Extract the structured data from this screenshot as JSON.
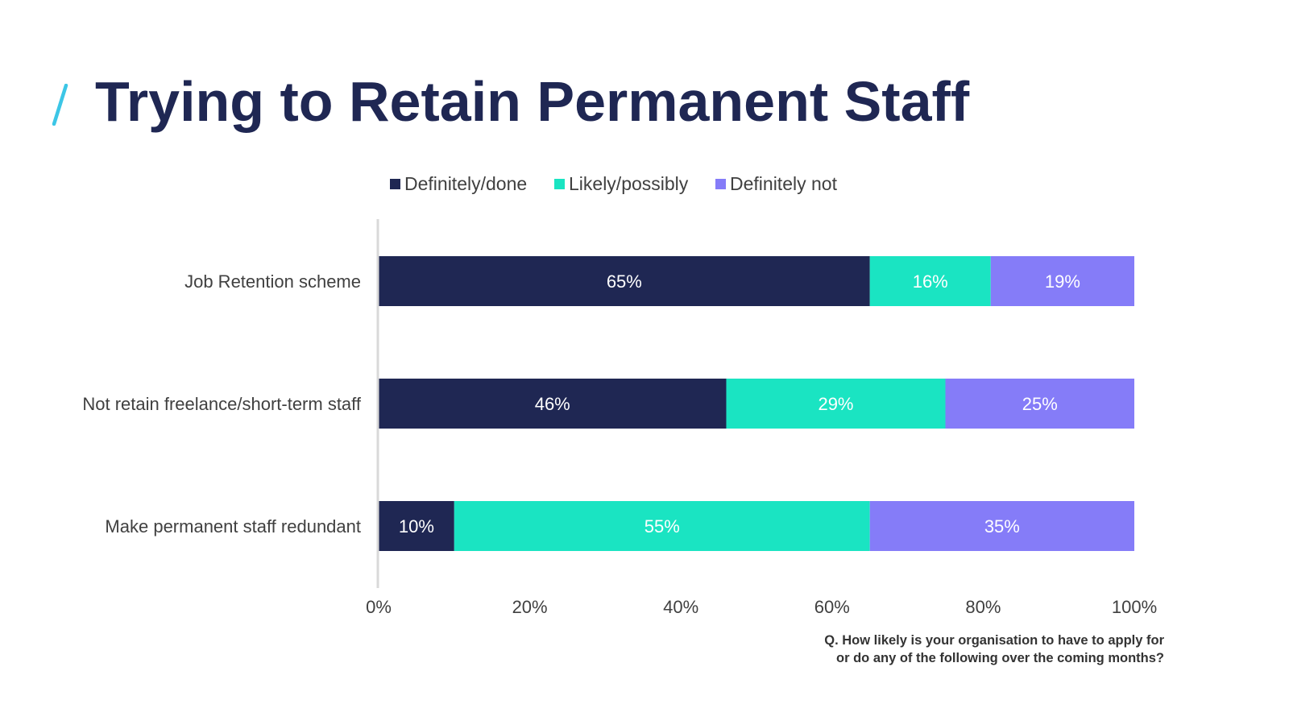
{
  "slide": {
    "title": "Trying to Retain Permanent Staff",
    "footnote_line1": "Q. How likely is your organisation to have to apply for",
    "footnote_line2": "or do any of the following over the coming months?"
  },
  "legend": [
    {
      "label": "Definitely/done",
      "color": "#1f2753"
    },
    {
      "label": "Likely/possibly",
      "color": "#1ae4c2"
    },
    {
      "label": "Definitely not",
      "color": "#857cf8"
    }
  ],
  "colors": {
    "title": "#1f2753",
    "slash": "#3cc6e6",
    "axis": "#d9d9d9",
    "label_text": "#404040",
    "bar_label_text": "#ffffff"
  },
  "chart_data": {
    "type": "bar",
    "orientation": "horizontal",
    "stacked": true,
    "title": "",
    "xlabel": "",
    "ylabel": "",
    "xlim": [
      0,
      100
    ],
    "x_ticks": [
      0,
      20,
      40,
      60,
      80,
      100
    ],
    "x_tick_labels": [
      "0%",
      "20%",
      "40%",
      "60%",
      "80%",
      "100%"
    ],
    "legend_position": "top",
    "categories": [
      "Job Retention scheme",
      "Not retain freelance/short-term staff",
      "Make permanent staff redundant"
    ],
    "series": [
      {
        "name": "Definitely/done",
        "color": "#1f2753",
        "values": [
          65,
          46,
          10
        ],
        "labels": [
          "65%",
          "46%",
          "10%"
        ]
      },
      {
        "name": "Likely/possibly",
        "color": "#1ae4c2",
        "values": [
          16,
          29,
          55
        ],
        "labels": [
          "16%",
          "29%",
          "55%"
        ]
      },
      {
        "name": "Definitely not",
        "color": "#857cf8",
        "values": [
          19,
          25,
          35
        ],
        "labels": [
          "19%",
          "25%",
          "35%"
        ]
      }
    ]
  }
}
